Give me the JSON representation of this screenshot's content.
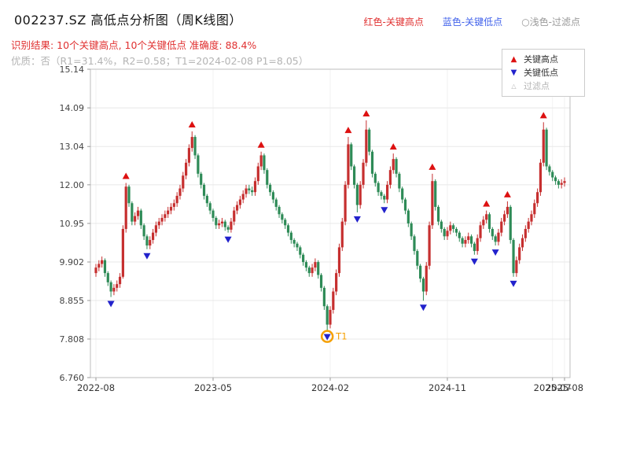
{
  "header": {
    "title": "002237.SZ 高低点分析图（周K线图）",
    "legend_top": [
      {
        "label": "红色-关键高点",
        "color": "#e03131"
      },
      {
        "label": "蓝色-关键低点",
        "color": "#4263eb"
      },
      {
        "label": "○浅色-过滤点",
        "color": "#9a9a9a"
      }
    ],
    "result_line": "识别结果: 10个关键高点, 10个关键低点  准确度: 88.4%",
    "quality_line": "优质：否（R1=31.4%，R2=0.58；T1=2024-02-08 P1=8.05）",
    "stats": {
      "key_high_count": 10,
      "key_low_count": 10,
      "accuracy": "88.4%",
      "r1": "31.4%",
      "r2": "0.58",
      "t1_date": "2024-02-08",
      "p1": "8.05"
    }
  },
  "chart_data": {
    "type": "candlestick",
    "title": "002237.SZ 高低点分析图（周K线图）",
    "interval": "weekly",
    "ylim": [
      6.76,
      15.14
    ],
    "y_ticks": [
      "15.14",
      "14.09",
      "13.04",
      "12.00",
      "10.95",
      "9.902",
      "8.855",
      "7.808",
      "6.760"
    ],
    "x_ticks": [
      {
        "week": 0,
        "label": "2022-08"
      },
      {
        "week": 39,
        "label": "2023-05"
      },
      {
        "week": 78,
        "label": "2024-02"
      },
      {
        "week": 117,
        "label": "2024-11"
      },
      {
        "week": 152,
        "label": "2025-07"
      },
      {
        "week": 156,
        "label": "2025-08"
      }
    ],
    "colors": {
      "up": "#c62f2f",
      "down": "#2e8b57",
      "key_high": "#dd1111",
      "key_low": "#2222cc",
      "filtered": "#b5b5b5",
      "annotation": "#f59f00",
      "grid": "#e8e8e8",
      "border": "#bdbdbd"
    },
    "legend_box": [
      {
        "label": "关键高点",
        "marker": "triangle-up",
        "color": "#dd1111"
      },
      {
        "label": "关键低点",
        "marker": "triangle-down",
        "color": "#2222cc"
      },
      {
        "label": "过滤点",
        "marker": "triangle-hollow",
        "color": "#b5b5b5"
      }
    ],
    "candles": [
      [
        9.6,
        9.85,
        9.5,
        9.75
      ],
      [
        9.75,
        9.95,
        9.65,
        9.85
      ],
      [
        9.85,
        10.05,
        9.75,
        9.95
      ],
      [
        9.95,
        10.0,
        9.5,
        9.6
      ],
      [
        9.6,
        9.65,
        9.25,
        9.35
      ],
      [
        9.35,
        9.4,
        8.95,
        9.1
      ],
      [
        9.1,
        9.3,
        9.0,
        9.2
      ],
      [
        9.2,
        9.4,
        9.1,
        9.3
      ],
      [
        9.3,
        9.6,
        9.2,
        9.5
      ],
      [
        9.5,
        10.9,
        9.45,
        10.8
      ],
      [
        10.8,
        12.05,
        10.7,
        11.95
      ],
      [
        11.95,
        12.0,
        11.4,
        11.5
      ],
      [
        11.5,
        11.55,
        10.9,
        11.0
      ],
      [
        11.0,
        11.25,
        10.9,
        11.15
      ],
      [
        11.15,
        11.4,
        11.05,
        11.3
      ],
      [
        11.3,
        11.35,
        10.8,
        10.9
      ],
      [
        10.9,
        10.95,
        10.5,
        10.6
      ],
      [
        10.6,
        10.65,
        10.25,
        10.35
      ],
      [
        10.35,
        10.6,
        10.25,
        10.5
      ],
      [
        10.5,
        10.8,
        10.4,
        10.7
      ],
      [
        10.7,
        11.0,
        10.6,
        10.9
      ],
      [
        10.9,
        11.1,
        10.8,
        11.0
      ],
      [
        11.0,
        11.2,
        10.9,
        11.1
      ],
      [
        11.1,
        11.3,
        11.0,
        11.2
      ],
      [
        11.2,
        11.4,
        11.1,
        11.3
      ],
      [
        11.3,
        11.5,
        11.2,
        11.4
      ],
      [
        11.4,
        11.6,
        11.3,
        11.5
      ],
      [
        11.5,
        11.8,
        11.4,
        11.7
      ],
      [
        11.7,
        12.0,
        11.6,
        11.9
      ],
      [
        11.9,
        12.35,
        11.8,
        12.25
      ],
      [
        12.25,
        12.7,
        12.15,
        12.6
      ],
      [
        12.6,
        13.1,
        12.5,
        13.0
      ],
      [
        13.0,
        13.45,
        12.9,
        13.3
      ],
      [
        13.3,
        13.35,
        12.7,
        12.8
      ],
      [
        12.8,
        12.85,
        12.2,
        12.3
      ],
      [
        12.3,
        12.35,
        11.9,
        12.0
      ],
      [
        12.0,
        12.05,
        11.6,
        11.7
      ],
      [
        11.7,
        11.75,
        11.4,
        11.5
      ],
      [
        11.5,
        11.55,
        11.2,
        11.3
      ],
      [
        11.3,
        11.35,
        11.0,
        11.1
      ],
      [
        11.1,
        11.15,
        10.8,
        10.9
      ],
      [
        10.9,
        11.05,
        10.8,
        10.95
      ],
      [
        10.95,
        11.1,
        10.85,
        11.0
      ],
      [
        11.0,
        11.05,
        10.75,
        10.85
      ],
      [
        10.85,
        10.9,
        10.7,
        10.78
      ],
      [
        10.78,
        11.1,
        10.7,
        11.0
      ],
      [
        11.0,
        11.4,
        10.9,
        11.3
      ],
      [
        11.3,
        11.55,
        11.2,
        11.45
      ],
      [
        11.45,
        11.7,
        11.35,
        11.6
      ],
      [
        11.6,
        11.85,
        11.5,
        11.75
      ],
      [
        11.75,
        12.0,
        11.65,
        11.9
      ],
      [
        11.9,
        12.0,
        11.75,
        11.85
      ],
      [
        11.85,
        11.95,
        11.7,
        11.8
      ],
      [
        11.8,
        12.2,
        11.7,
        12.1
      ],
      [
        12.1,
        12.6,
        12.0,
        12.5
      ],
      [
        12.5,
        12.9,
        12.4,
        12.8
      ],
      [
        12.8,
        12.85,
        12.3,
        12.4
      ],
      [
        12.4,
        12.45,
        11.9,
        12.0
      ],
      [
        12.0,
        12.05,
        11.7,
        11.8
      ],
      [
        11.8,
        11.85,
        11.5,
        11.6
      ],
      [
        11.6,
        11.65,
        11.3,
        11.4
      ],
      [
        11.4,
        11.45,
        11.1,
        11.2
      ],
      [
        11.2,
        11.25,
        10.95,
        11.05
      ],
      [
        11.05,
        11.1,
        10.8,
        10.9
      ],
      [
        10.9,
        10.95,
        10.6,
        10.7
      ],
      [
        10.7,
        10.75,
        10.4,
        10.5
      ],
      [
        10.5,
        10.55,
        10.3,
        10.4
      ],
      [
        10.4,
        10.45,
        10.2,
        10.3
      ],
      [
        10.3,
        10.35,
        10.0,
        10.1
      ],
      [
        10.1,
        10.15,
        9.8,
        9.9
      ],
      [
        9.9,
        9.95,
        9.65,
        9.75
      ],
      [
        9.75,
        9.8,
        9.5,
        9.6
      ],
      [
        9.6,
        9.85,
        9.5,
        9.75
      ],
      [
        9.75,
        10.0,
        9.65,
        9.9
      ],
      [
        9.9,
        9.95,
        9.45,
        9.55
      ],
      [
        9.55,
        9.6,
        9.1,
        9.2
      ],
      [
        9.2,
        9.25,
        8.6,
        8.7
      ],
      [
        8.7,
        8.75,
        8.05,
        8.2
      ],
      [
        8.2,
        8.7,
        8.1,
        8.6
      ],
      [
        8.6,
        9.2,
        8.5,
        9.1
      ],
      [
        9.1,
        9.7,
        9.0,
        9.6
      ],
      [
        9.6,
        10.4,
        9.5,
        10.3
      ],
      [
        10.3,
        11.1,
        10.2,
        11.0
      ],
      [
        11.0,
        12.1,
        10.9,
        12.0
      ],
      [
        12.0,
        13.3,
        11.9,
        13.1
      ],
      [
        13.1,
        13.15,
        12.4,
        12.5
      ],
      [
        12.5,
        12.55,
        11.9,
        12.0
      ],
      [
        12.0,
        12.05,
        11.25,
        11.45
      ],
      [
        11.45,
        12.1,
        11.35,
        12.0
      ],
      [
        12.0,
        12.7,
        11.9,
        12.6
      ],
      [
        12.6,
        13.75,
        12.5,
        13.5
      ],
      [
        13.5,
        13.55,
        12.8,
        12.9
      ],
      [
        12.9,
        12.95,
        12.2,
        12.3
      ],
      [
        12.3,
        12.35,
        11.95,
        12.05
      ],
      [
        12.05,
        12.1,
        11.7,
        11.8
      ],
      [
        11.8,
        11.85,
        11.6,
        11.7
      ],
      [
        11.7,
        11.75,
        11.5,
        11.6
      ],
      [
        11.6,
        12.1,
        11.5,
        12.0
      ],
      [
        12.0,
        12.5,
        11.9,
        12.4
      ],
      [
        12.4,
        12.85,
        12.3,
        12.7
      ],
      [
        12.7,
        12.75,
        12.2,
        12.3
      ],
      [
        12.3,
        12.35,
        11.8,
        11.9
      ],
      [
        11.9,
        11.95,
        11.5,
        11.6
      ],
      [
        11.6,
        11.65,
        11.2,
        11.3
      ],
      [
        11.3,
        11.35,
        10.85,
        10.95
      ],
      [
        10.95,
        11.0,
        10.5,
        10.6
      ],
      [
        10.6,
        10.65,
        10.1,
        10.2
      ],
      [
        10.2,
        10.25,
        9.7,
        9.8
      ],
      [
        9.8,
        9.85,
        9.35,
        9.45
      ],
      [
        9.45,
        9.5,
        8.85,
        9.1
      ],
      [
        9.1,
        9.9,
        9.0,
        9.8
      ],
      [
        9.8,
        11.0,
        9.7,
        10.9
      ],
      [
        10.9,
        12.3,
        10.8,
        12.1
      ],
      [
        12.1,
        12.15,
        11.3,
        11.4
      ],
      [
        11.4,
        11.45,
        10.9,
        11.0
      ],
      [
        11.0,
        11.05,
        10.7,
        10.8
      ],
      [
        10.8,
        10.85,
        10.5,
        10.6
      ],
      [
        10.6,
        10.85,
        10.5,
        10.75
      ],
      [
        10.75,
        11.0,
        10.65,
        10.9
      ],
      [
        10.9,
        10.95,
        10.7,
        10.8
      ],
      [
        10.8,
        10.85,
        10.6,
        10.7
      ],
      [
        10.7,
        10.75,
        10.45,
        10.55
      ],
      [
        10.55,
        10.6,
        10.3,
        10.4
      ],
      [
        10.4,
        10.6,
        10.3,
        10.5
      ],
      [
        10.5,
        10.7,
        10.4,
        10.6
      ],
      [
        10.6,
        10.65,
        10.3,
        10.4
      ],
      [
        10.4,
        10.45,
        10.1,
        10.2
      ],
      [
        10.2,
        10.65,
        10.1,
        10.55
      ],
      [
        10.55,
        11.0,
        10.45,
        10.9
      ],
      [
        10.9,
        11.15,
        10.8,
        11.05
      ],
      [
        11.05,
        11.3,
        10.95,
        11.2
      ],
      [
        11.2,
        11.25,
        10.7,
        10.8
      ],
      [
        10.8,
        10.85,
        10.5,
        10.6
      ],
      [
        10.6,
        10.65,
        10.35,
        10.45
      ],
      [
        10.45,
        10.8,
        10.35,
        10.7
      ],
      [
        10.7,
        11.1,
        10.6,
        11.0
      ],
      [
        11.0,
        11.3,
        10.9,
        11.2
      ],
      [
        11.2,
        11.55,
        11.1,
        11.4
      ],
      [
        11.4,
        11.45,
        10.4,
        10.5
      ],
      [
        10.5,
        10.55,
        9.5,
        9.6
      ],
      [
        9.6,
        10.05,
        9.5,
        9.95
      ],
      [
        9.95,
        10.4,
        9.85,
        10.3
      ],
      [
        10.3,
        10.65,
        10.2,
        10.55
      ],
      [
        10.55,
        10.9,
        10.45,
        10.8
      ],
      [
        10.8,
        11.1,
        10.7,
        11.0
      ],
      [
        11.0,
        11.3,
        10.9,
        11.2
      ],
      [
        11.2,
        11.6,
        11.1,
        11.5
      ],
      [
        11.5,
        11.9,
        11.4,
        11.8
      ],
      [
        11.8,
        12.7,
        11.7,
        12.6
      ],
      [
        12.6,
        13.7,
        12.5,
        13.5
      ],
      [
        13.5,
        13.55,
        12.4,
        12.5
      ],
      [
        12.5,
        12.55,
        12.25,
        12.35
      ],
      [
        12.35,
        12.4,
        12.1,
        12.2
      ],
      [
        12.2,
        12.25,
        12.0,
        12.1
      ],
      [
        12.1,
        12.15,
        11.9,
        12.0
      ],
      [
        12.0,
        12.15,
        11.9,
        12.05
      ],
      [
        12.05,
        12.2,
        11.95,
        12.1
      ]
    ],
    "key_highs": [
      {
        "week": 10,
        "price": 12.05
      },
      {
        "week": 32,
        "price": 13.45
      },
      {
        "week": 55,
        "price": 12.9
      },
      {
        "week": 84,
        "price": 13.3
      },
      {
        "week": 90,
        "price": 13.75
      },
      {
        "week": 99,
        "price": 12.85
      },
      {
        "week": 112,
        "price": 12.3
      },
      {
        "week": 130,
        "price": 11.3
      },
      {
        "week": 137,
        "price": 11.55
      },
      {
        "week": 149,
        "price": 13.7
      }
    ],
    "key_lows": [
      {
        "week": 5,
        "price": 8.95
      },
      {
        "week": 17,
        "price": 10.25
      },
      {
        "week": 44,
        "price": 10.7
      },
      {
        "week": 77,
        "price": 8.05
      },
      {
        "week": 87,
        "price": 11.25
      },
      {
        "week": 96,
        "price": 11.5
      },
      {
        "week": 109,
        "price": 8.85
      },
      {
        "week": 126,
        "price": 10.1
      },
      {
        "week": 133,
        "price": 10.35
      },
      {
        "week": 139,
        "price": 9.5
      }
    ],
    "filtered_points": [],
    "annotation": {
      "week": 77,
      "price": 8.05,
      "label": "T1",
      "color": "#f59f00"
    }
  }
}
